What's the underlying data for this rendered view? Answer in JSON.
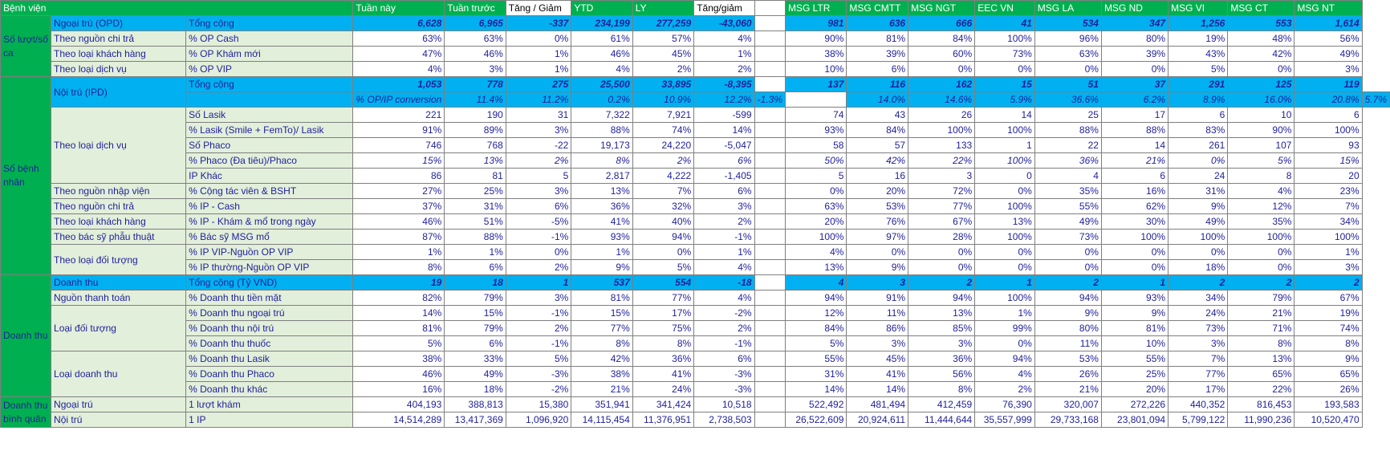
{
  "header": {
    "corner": "Bệnh viện",
    "period_cols": [
      "Tuần này",
      "Tuần trước",
      "Tăng / Giảm",
      "YTD",
      "LY",
      "Tăng/giảm"
    ],
    "branch_cols": [
      "MSG LTR",
      "MSG CMTT",
      "MSG NGT",
      "EEC VN",
      "MSG LA",
      "MSG ND",
      "MSG VI",
      "MSG CT",
      "MSG NT"
    ]
  },
  "groups": {
    "luot": "Số lượt/số ca",
    "benhnhan": "Số bệnh nhân",
    "doanhthu": "Doanh thu",
    "binhquan": "Doanh thu bình quân"
  },
  "rows": [
    {
      "l2": "Ngoại trú (OPD)",
      "l3": "Tổng cộng",
      "p": [
        "6,628",
        "6,965",
        "-337",
        "234,199",
        "277,259",
        "-43,060"
      ],
      "b": [
        "981",
        "636",
        "666",
        "41",
        "534",
        "347",
        "1,256",
        "553",
        "1,614"
      ]
    },
    {
      "l2": "Theo nguồn chi trả",
      "l3": "% OP Cash",
      "p": [
        "63%",
        "63%",
        "0%",
        "61%",
        "57%",
        "4%"
      ],
      "b": [
        "90%",
        "81%",
        "84%",
        "100%",
        "96%",
        "80%",
        "19%",
        "48%",
        "56%"
      ]
    },
    {
      "l2": "Theo loại khách hàng",
      "l3": "% OP Khám mới",
      "p": [
        "47%",
        "46%",
        "1%",
        "46%",
        "45%",
        "1%"
      ],
      "b": [
        "38%",
        "39%",
        "60%",
        "73%",
        "63%",
        "39%",
        "43%",
        "42%",
        "49%"
      ]
    },
    {
      "l2": "Theo loại dịch vụ",
      "l3": "% OP VIP",
      "p": [
        "4%",
        "3%",
        "1%",
        "4%",
        "2%",
        "2%"
      ],
      "b": [
        "10%",
        "6%",
        "0%",
        "0%",
        "0%",
        "0%",
        "5%",
        "0%",
        "3%"
      ]
    },
    {
      "l2": "Nội trú (IPD)",
      "l3": "Tổng cộng",
      "p": [
        "1,053",
        "778",
        "275",
        "25,500",
        "33,895",
        "-8,395"
      ],
      "b": [
        "137",
        "116",
        "162",
        "15",
        "51",
        "37",
        "291",
        "125",
        "119"
      ]
    },
    {
      "l2": "",
      "l3": "% OP/IP conversion",
      "p": [
        "11.4%",
        "11.2%",
        "0.2%",
        "10.9%",
        "12.2%",
        "-1.3%"
      ],
      "b": [
        "14.0%",
        "14.6%",
        "5.9%",
        "36.6%",
        "6.2%",
        "8.9%",
        "16.0%",
        "20.8%",
        "5.7%"
      ]
    },
    {
      "l2": "Theo loại dịch vụ",
      "l3": "Số Lasik",
      "p": [
        "221",
        "190",
        "31",
        "7,322",
        "7,921",
        "-599"
      ],
      "b": [
        "74",
        "43",
        "26",
        "14",
        "25",
        "17",
        "6",
        "10",
        "6"
      ]
    },
    {
      "l2": "",
      "l3": "% Lasik (Smile + FemTo)/ Lasik",
      "p": [
        "91%",
        "89%",
        "3%",
        "88%",
        "74%",
        "14%"
      ],
      "b": [
        "93%",
        "84%",
        "100%",
        "100%",
        "88%",
        "88%",
        "83%",
        "90%",
        "100%"
      ]
    },
    {
      "l2": "",
      "l3": "Số Phaco",
      "p": [
        "746",
        "768",
        "-22",
        "19,173",
        "24,220",
        "-5,047"
      ],
      "b": [
        "58",
        "57",
        "133",
        "1",
        "22",
        "14",
        "261",
        "107",
        "93"
      ]
    },
    {
      "l2": "",
      "l3": "% Phaco (Đa tiêu)/Phaco",
      "p": [
        "15%",
        "13%",
        "2%",
        "8%",
        "2%",
        "6%"
      ],
      "b": [
        "50%",
        "42%",
        "22%",
        "100%",
        "36%",
        "21%",
        "0%",
        "5%",
        "15%"
      ]
    },
    {
      "l2": "",
      "l3": "IP Khác",
      "p": [
        "86",
        "81",
        "5",
        "2,817",
        "4,222",
        "-1,405"
      ],
      "b": [
        "5",
        "16",
        "3",
        "0",
        "4",
        "6",
        "24",
        "8",
        "20"
      ]
    },
    {
      "l2": "Theo nguồn nhập viện",
      "l3": "% Cộng tác viên & BSHT",
      "p": [
        "27%",
        "25%",
        "3%",
        "13%",
        "7%",
        "6%"
      ],
      "b": [
        "0%",
        "20%",
        "72%",
        "0%",
        "35%",
        "16%",
        "31%",
        "4%",
        "23%"
      ]
    },
    {
      "l2": "Theo nguồn chi trả",
      "l3": "% IP - Cash",
      "p": [
        "37%",
        "31%",
        "6%",
        "36%",
        "32%",
        "3%"
      ],
      "b": [
        "63%",
        "53%",
        "77%",
        "100%",
        "55%",
        "62%",
        "9%",
        "12%",
        "7%"
      ]
    },
    {
      "l2": "Theo loại khách hàng",
      "l3": "% IP - Khám & mổ trong ngày",
      "p": [
        "46%",
        "51%",
        "-5%",
        "41%",
        "40%",
        "2%"
      ],
      "b": [
        "20%",
        "76%",
        "67%",
        "13%",
        "49%",
        "30%",
        "49%",
        "35%",
        "34%"
      ]
    },
    {
      "l2": "Theo bác sỹ phẫu thuật",
      "l3": "% Bác sỹ MSG mổ",
      "p": [
        "87%",
        "88%",
        "-1%",
        "93%",
        "94%",
        "-1%"
      ],
      "b": [
        "100%",
        "97%",
        "28%",
        "100%",
        "73%",
        "100%",
        "100%",
        "100%",
        "100%"
      ]
    },
    {
      "l2": "Theo loại đối tượng",
      "l3": "% IP VIP-Nguồn OP VIP",
      "p": [
        "1%",
        "1%",
        "0%",
        "1%",
        "0%",
        "1%"
      ],
      "b": [
        "4%",
        "0%",
        "0%",
        "0%",
        "0%",
        "0%",
        "0%",
        "0%",
        "1%"
      ]
    },
    {
      "l2": "",
      "l3": "% IP thường-Nguồn OP VIP",
      "p": [
        "8%",
        "6%",
        "2%",
        "9%",
        "5%",
        "4%"
      ],
      "b": [
        "13%",
        "9%",
        "0%",
        "0%",
        "0%",
        "0%",
        "18%",
        "0%",
        "3%"
      ]
    },
    {
      "l2": "Doanh thu",
      "l3": "Tổng cộng (Tỷ VND)",
      "p": [
        "19",
        "18",
        "1",
        "537",
        "554",
        "-18"
      ],
      "b": [
        "4",
        "3",
        "2",
        "1",
        "2",
        "1",
        "2",
        "2",
        "2"
      ]
    },
    {
      "l2": "Nguồn thanh toán",
      "l3": "% Doanh thu tiền mặt",
      "p": [
        "82%",
        "79%",
        "3%",
        "81%",
        "77%",
        "4%"
      ],
      "b": [
        "94%",
        "91%",
        "94%",
        "100%",
        "94%",
        "93%",
        "34%",
        "79%",
        "67%"
      ]
    },
    {
      "l2": "Loại đối tượng",
      "l3": "% Doanh thu ngoại trú",
      "p": [
        "14%",
        "15%",
        "-1%",
        "15%",
        "17%",
        "-2%"
      ],
      "b": [
        "12%",
        "11%",
        "13%",
        "1%",
        "9%",
        "9%",
        "24%",
        "21%",
        "19%"
      ]
    },
    {
      "l2": "",
      "l3": "% Doanh thu nội trú",
      "p": [
        "81%",
        "79%",
        "2%",
        "77%",
        "75%",
        "2%"
      ],
      "b": [
        "84%",
        "86%",
        "85%",
        "99%",
        "80%",
        "81%",
        "73%",
        "71%",
        "74%"
      ]
    },
    {
      "l2": "",
      "l3": "% Doanh thu thuốc",
      "p": [
        "5%",
        "6%",
        "-1%",
        "8%",
        "8%",
        "-1%"
      ],
      "b": [
        "5%",
        "3%",
        "3%",
        "0%",
        "11%",
        "10%",
        "3%",
        "8%",
        "8%"
      ]
    },
    {
      "l2": "Loại doanh thu",
      "l3": "% Doanh thu Lasik",
      "p": [
        "38%",
        "33%",
        "5%",
        "42%",
        "36%",
        "6%"
      ],
      "b": [
        "55%",
        "45%",
        "36%",
        "94%",
        "53%",
        "55%",
        "7%",
        "13%",
        "9%"
      ]
    },
    {
      "l2": "",
      "l3": "% Doanh thu Phaco",
      "p": [
        "46%",
        "49%",
        "-3%",
        "38%",
        "41%",
        "-3%"
      ],
      "b": [
        "31%",
        "41%",
        "56%",
        "4%",
        "26%",
        "25%",
        "77%",
        "65%",
        "65%"
      ]
    },
    {
      "l2": "",
      "l3": "% Doanh thu khác",
      "p": [
        "16%",
        "18%",
        "-2%",
        "21%",
        "24%",
        "-3%"
      ],
      "b": [
        "14%",
        "14%",
        "8%",
        "2%",
        "21%",
        "20%",
        "17%",
        "22%",
        "26%"
      ]
    },
    {
      "l2": "Ngoại trú",
      "l3": "1 lượt khám",
      "p": [
        "404,193",
        "388,813",
        "15,380",
        "351,941",
        "341,424",
        "10,518"
      ],
      "b": [
        "522,492",
        "481,494",
        "412,459",
        "76,390",
        "320,007",
        "272,226",
        "440,352",
        "816,453",
        "193,583"
      ]
    },
    {
      "l2": "Nội trú",
      "l3": "1 IP",
      "p": [
        "14,514,289",
        "13,417,369",
        "1,096,920",
        "14,115,454",
        "11,376,951",
        "2,738,503"
      ],
      "b": [
        "26,522,609",
        "20,924,611",
        "11,444,644",
        "35,557,999",
        "29,733,168",
        "23,801,094",
        "5,799,122",
        "11,990,236",
        "10,520,470"
      ]
    }
  ]
}
